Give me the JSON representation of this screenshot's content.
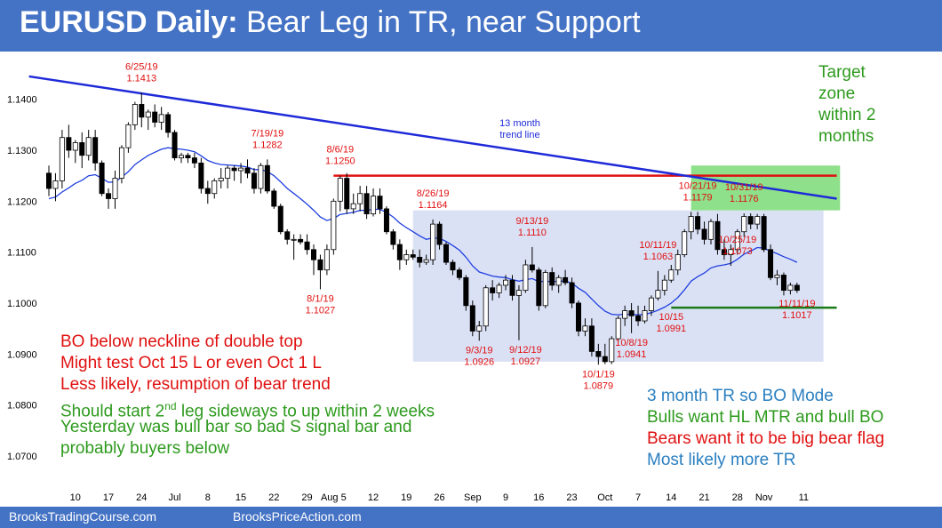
{
  "title": {
    "bold": "EURUSD Daily:",
    "rest": "Bear Leg in TR, near Support"
  },
  "footer": {
    "left": "BrooksTradingCourse.com",
    "right": "BrooksPriceAction.com"
  },
  "colors": {
    "accent": "#4472c4",
    "bull": "#ffffff",
    "bear": "#000000",
    "ema": "#1f3fe0",
    "trendline": "#1e2ad8",
    "resistance": "#e01010",
    "support": "#1a7a1a",
    "range_box": "#dbe1f5",
    "target_box": "#8ee08a",
    "red_text": "#e01010",
    "green_text": "#2e9a1e",
    "blue_text": "#2a7fc0"
  },
  "chart_data": {
    "type": "candlestick",
    "ylim": [
      1.063,
      1.1485
    ],
    "y_ticks": [
      "1.1400",
      "1.1300",
      "1.1200",
      "1.1100",
      "1.1000",
      "1.0900",
      "1.0800",
      "1.0700"
    ],
    "y_tick_values": [
      1.14,
      1.13,
      1.12,
      1.11,
      1.1,
      1.09,
      1.08,
      1.07
    ],
    "x_ticks": [
      {
        "label": "10",
        "bar": 4
      },
      {
        "label": "17",
        "bar": 9
      },
      {
        "label": "24",
        "bar": 14
      },
      {
        "label": "Jul",
        "bar": 19
      },
      {
        "label": "8",
        "bar": 24
      },
      {
        "label": "15",
        "bar": 29
      },
      {
        "label": "22",
        "bar": 34
      },
      {
        "label": "29",
        "bar": 39
      },
      {
        "label": "Aug 5",
        "bar": 43
      },
      {
        "label": "12",
        "bar": 49
      },
      {
        "label": "19",
        "bar": 54
      },
      {
        "label": "26",
        "bar": 59
      },
      {
        "label": "Sep",
        "bar": 64
      },
      {
        "label": "9",
        "bar": 69
      },
      {
        "label": "16",
        "bar": 74
      },
      {
        "label": "23",
        "bar": 79
      },
      {
        "label": "Oct",
        "bar": 84
      },
      {
        "label": "7",
        "bar": 89
      },
      {
        "label": "14",
        "bar": 94
      },
      {
        "label": "21",
        "bar": 99
      },
      {
        "label": "28",
        "bar": 104
      },
      {
        "label": "Nov",
        "bar": 108
      },
      {
        "label": "11",
        "bar": 114
      }
    ],
    "ohlc": [
      [
        1.1255,
        1.127,
        1.121,
        1.1225
      ],
      [
        1.1225,
        1.1255,
        1.12,
        1.124
      ],
      [
        1.124,
        1.134,
        1.1225,
        1.1325
      ],
      [
        1.1325,
        1.135,
        1.1285,
        1.13
      ],
      [
        1.13,
        1.132,
        1.1275,
        1.1315
      ],
      [
        1.1315,
        1.1335,
        1.1265,
        1.129
      ],
      [
        1.129,
        1.134,
        1.128,
        1.1325
      ],
      [
        1.1325,
        1.134,
        1.126,
        1.1275
      ],
      [
        1.1275,
        1.128,
        1.121,
        1.1215
      ],
      [
        1.1215,
        1.1225,
        1.1185,
        1.1205
      ],
      [
        1.1205,
        1.126,
        1.1185,
        1.1245
      ],
      [
        1.1245,
        1.131,
        1.1235,
        1.1305
      ],
      [
        1.1305,
        1.1355,
        1.1295,
        1.135
      ],
      [
        1.135,
        1.1395,
        1.134,
        1.139
      ],
      [
        1.139,
        1.1413,
        1.1345,
        1.1365
      ],
      [
        1.1365,
        1.138,
        1.134,
        1.1375
      ],
      [
        1.1375,
        1.139,
        1.1345,
        1.1355
      ],
      [
        1.1355,
        1.1385,
        1.134,
        1.137
      ],
      [
        1.137,
        1.1375,
        1.1325,
        1.1335
      ],
      [
        1.1335,
        1.134,
        1.128,
        1.1285
      ],
      [
        1.1285,
        1.1295,
        1.1275,
        1.129
      ],
      [
        1.129,
        1.1295,
        1.1275,
        1.1285
      ],
      [
        1.1285,
        1.1295,
        1.1265,
        1.1275
      ],
      [
        1.1275,
        1.1285,
        1.1215,
        1.1225
      ],
      [
        1.1225,
        1.124,
        1.1195,
        1.1215
      ],
      [
        1.1215,
        1.1245,
        1.1205,
        1.124
      ],
      [
        1.124,
        1.1265,
        1.1225,
        1.1245
      ],
      [
        1.1245,
        1.127,
        1.1225,
        1.1265
      ],
      [
        1.1265,
        1.127,
        1.124,
        1.126
      ],
      [
        1.126,
        1.1275,
        1.1235,
        1.1265
      ],
      [
        1.1265,
        1.1282,
        1.1245,
        1.1255
      ],
      [
        1.1255,
        1.1265,
        1.1215,
        1.1225
      ],
      [
        1.1225,
        1.1275,
        1.1215,
        1.127
      ],
      [
        1.127,
        1.1282,
        1.1215,
        1.122
      ],
      [
        1.122,
        1.1225,
        1.1185,
        1.119
      ],
      [
        1.119,
        1.1195,
        1.1135,
        1.114
      ],
      [
        1.114,
        1.1145,
        1.1115,
        1.1125
      ],
      [
        1.1125,
        1.1135,
        1.1085,
        1.1125
      ],
      [
        1.1125,
        1.1135,
        1.1115,
        1.112
      ],
      [
        1.112,
        1.1135,
        1.1095,
        1.1105
      ],
      [
        1.1105,
        1.1115,
        1.1055,
        1.1085
      ],
      [
        1.1085,
        1.1095,
        1.1027,
        1.1065
      ],
      [
        1.1065,
        1.1115,
        1.1055,
        1.1105
      ],
      [
        1.1105,
        1.1205,
        1.1095,
        1.12
      ],
      [
        1.12,
        1.125,
        1.118,
        1.1245
      ],
      [
        1.1245,
        1.1255,
        1.1175,
        1.1185
      ],
      [
        1.1185,
        1.1215,
        1.1175,
        1.1195
      ],
      [
        1.1195,
        1.123,
        1.118,
        1.1215
      ],
      [
        1.1215,
        1.123,
        1.1165,
        1.1175
      ],
      [
        1.1175,
        1.1225,
        1.117,
        1.121
      ],
      [
        1.121,
        1.1225,
        1.1175,
        1.1185
      ],
      [
        1.1185,
        1.119,
        1.1135,
        1.114
      ],
      [
        1.114,
        1.1145,
        1.1105,
        1.1115
      ],
      [
        1.1115,
        1.1125,
        1.1065,
        1.1085
      ],
      [
        1.1085,
        1.1105,
        1.1075,
        1.1095
      ],
      [
        1.1095,
        1.1105,
        1.1085,
        1.109
      ],
      [
        1.109,
        1.1105,
        1.107,
        1.108
      ],
      [
        1.108,
        1.1095,
        1.1075,
        1.1085
      ],
      [
        1.1085,
        1.1164,
        1.1075,
        1.1155
      ],
      [
        1.1155,
        1.116,
        1.1105,
        1.1115
      ],
      [
        1.1115,
        1.112,
        1.1075,
        1.108
      ],
      [
        1.108,
        1.1085,
        1.1055,
        1.1065
      ],
      [
        1.1065,
        1.107,
        1.1045,
        1.105
      ],
      [
        1.105,
        1.1055,
        1.0985,
        1.0995
      ],
      [
        1.0995,
        1.1005,
        1.0935,
        1.0945
      ],
      [
        1.0945,
        1.0965,
        1.0926,
        1.0955
      ],
      [
        1.0955,
        1.1035,
        1.0945,
        1.103
      ],
      [
        1.103,
        1.1045,
        1.1005,
        1.102
      ],
      [
        1.102,
        1.104,
        1.101,
        1.1035
      ],
      [
        1.1035,
        1.1055,
        1.1025,
        1.1045
      ],
      [
        1.1045,
        1.1055,
        1.1005,
        1.1015
      ],
      [
        1.1015,
        1.1035,
        1.0927,
        1.1025
      ],
      [
        1.1025,
        1.1085,
        1.102,
        1.1075
      ],
      [
        1.1075,
        1.111,
        1.106,
        1.1065
      ],
      [
        1.1065,
        1.107,
        1.0985,
        1.0995
      ],
      [
        1.0995,
        1.1065,
        1.099,
        1.106
      ],
      [
        1.106,
        1.107,
        1.1025,
        1.1035
      ],
      [
        1.1035,
        1.1055,
        1.102,
        1.105
      ],
      [
        1.105,
        1.1065,
        1.1035,
        1.104
      ],
      [
        1.104,
        1.105,
        1.099,
        1.1
      ],
      [
        1.1,
        1.1005,
        1.0935,
        1.0945
      ],
      [
        1.0945,
        1.097,
        1.0935,
        1.0955
      ],
      [
        1.0955,
        1.097,
        1.0895,
        1.0905
      ],
      [
        1.0905,
        1.092,
        1.0879,
        1.0895
      ],
      [
        1.0895,
        1.092,
        1.088,
        1.0885
      ],
      [
        1.0885,
        1.0935,
        1.088,
        1.093
      ],
      [
        1.093,
        1.0975,
        1.0925,
        1.097
      ],
      [
        1.097,
        1.0995,
        1.0955,
        1.0985
      ],
      [
        1.0985,
        1.1,
        1.0941,
        1.0975
      ],
      [
        1.0975,
        1.0995,
        1.0955,
        1.0965
      ],
      [
        1.0965,
        1.0995,
        1.096,
        1.0985
      ],
      [
        1.0985,
        1.1015,
        1.0975,
        1.101
      ],
      [
        1.101,
        1.1063,
        1.1005,
        1.1025
      ],
      [
        1.1025,
        1.1055,
        1.1015,
        1.1045
      ],
      [
        1.1045,
        1.1075,
        1.104,
        1.1065
      ],
      [
        1.1065,
        1.1105,
        1.1055,
        1.1095
      ],
      [
        1.1095,
        1.1145,
        1.109,
        1.114
      ],
      [
        1.114,
        1.1179,
        1.1125,
        1.117
      ],
      [
        1.117,
        1.1179,
        1.1135,
        1.1145
      ],
      [
        1.1145,
        1.116,
        1.1115,
        1.1125
      ],
      [
        1.1125,
        1.1165,
        1.1115,
        1.116
      ],
      [
        1.116,
        1.1175,
        1.1095,
        1.1105
      ],
      [
        1.1105,
        1.1125,
        1.1085,
        1.1095
      ],
      [
        1.1095,
        1.1115,
        1.1073,
        1.1105
      ],
      [
        1.1105,
        1.1145,
        1.1095,
        1.114
      ],
      [
        1.114,
        1.1176,
        1.113,
        1.117
      ],
      [
        1.117,
        1.1176,
        1.1145,
        1.1155
      ],
      [
        1.1155,
        1.1175,
        1.1145,
        1.117
      ],
      [
        1.117,
        1.1175,
        1.11,
        1.1105
      ],
      [
        1.1105,
        1.1115,
        1.1045,
        1.105
      ],
      [
        1.105,
        1.1065,
        1.1035,
        1.1055
      ],
      [
        1.1055,
        1.106,
        1.1015,
        1.1025
      ],
      [
        1.1025,
        1.104,
        1.1017,
        1.1035
      ],
      [
        1.1035,
        1.104,
        1.102,
        1.1025
      ]
    ],
    "ema": [
      1.1205,
      1.1208,
      1.1218,
      1.1226,
      1.1235,
      1.1241,
      1.125,
      1.1252,
      1.1245,
      1.1237,
      1.1238,
      1.1247,
      1.1258,
      1.1272,
      1.1281,
      1.129,
      1.1296,
      1.1302,
      1.1305,
      1.1303,
      1.1302,
      1.13,
      1.1297,
      1.1289,
      1.128,
      1.1275,
      1.1272,
      1.1271,
      1.127,
      1.1269,
      1.1267,
      1.1262,
      1.1262,
      1.1258,
      1.125,
      1.1238,
      1.1225,
      1.1215,
      1.1205,
      1.1194,
      1.1182,
      1.1169,
      1.1162,
      1.1166,
      1.1174,
      1.1176,
      1.1178,
      1.1182,
      1.1182,
      1.1184,
      1.1184,
      1.1178,
      1.1169,
      1.1157,
      1.1148,
      1.114,
      1.1132,
      1.1125,
      1.1128,
      1.1127,
      1.1121,
      1.1113,
      1.1104,
      1.109,
      1.1073,
      1.1061,
      1.1057,
      1.1053,
      1.1051,
      1.105,
      1.1046,
      1.1043,
      1.1046,
      1.1048,
      1.1042,
      1.1043,
      1.1042,
      1.1043,
      1.1043,
      1.1039,
      1.1029,
      1.1021,
      1.1008,
      1.0995,
      1.0984,
      1.0978,
      1.0977,
      1.0978,
      1.0978,
      1.0977,
      1.0978,
      1.0981,
      1.0986,
      1.0992,
      1.1,
      1.1011,
      1.1026,
      1.1043,
      1.1052,
      1.1059,
      1.1069,
      1.1073,
      1.1075,
      1.1078,
      1.1086,
      1.1096,
      1.1102,
      1.1109,
      1.1108,
      1.1102,
      1.1097,
      1.1091,
      1.1086,
      1.108
    ],
    "trend_line": {
      "label": "13 month\ntrend line",
      "from": [
        -3,
        1.1445
      ],
      "to": [
        119,
        1.1205
      ]
    },
    "resistance_line": {
      "from": [
        43,
        1.125
      ],
      "to": [
        119,
        1.125
      ]
    },
    "support_line": {
      "from": [
        94,
        1.0991
      ],
      "to": [
        119,
        1.0991
      ]
    },
    "trading_range_box": {
      "from": [
        55,
        1.0885
      ],
      "to": [
        117,
        1.1182
      ]
    },
    "target_zone_box": {
      "from": [
        97,
        1.1182
      ],
      "to": [
        119.5,
        1.127
      ]
    },
    "annotations": [
      {
        "lines": [
          "6/25/19",
          "1.1413"
        ],
        "bar": 14,
        "price": 1.1413,
        "color": "red"
      },
      {
        "lines": [
          "7/19/19",
          "1.1282"
        ],
        "bar": 33,
        "price": 1.1282,
        "color": "red"
      },
      {
        "lines": [
          "8/6/19",
          "1.1250"
        ],
        "bar": 44,
        "price": 1.125,
        "color": "red"
      },
      {
        "lines": [
          "8/26/19",
          "1.1164"
        ],
        "bar": 58,
        "price": 1.1164,
        "color": "red"
      },
      {
        "lines": [
          "9/13/19",
          "1.1110"
        ],
        "bar": 73,
        "price": 1.111,
        "color": "red"
      },
      {
        "lines": [
          "10/21/19",
          "1.1179"
        ],
        "bar": 98,
        "price": 1.1179,
        "color": "red"
      },
      {
        "lines": [
          "10/31/19",
          "1.1176"
        ],
        "bar": 105,
        "price": 1.1176,
        "color": "red"
      },
      {
        "lines": [
          "10/11/19",
          "1.1063"
        ],
        "bar": 92,
        "price": 1.1063,
        "color": "red"
      },
      {
        "lines": [
          "10/25/19",
          "1.1073"
        ],
        "bar": 104,
        "price": 1.1073,
        "color": "red"
      },
      {
        "lines": [
          "8/1/19",
          "1.1027"
        ],
        "bar": 41,
        "price": 1.1027,
        "color": "red"
      },
      {
        "lines": [
          "10/15",
          "1.0991"
        ],
        "bar": 94,
        "price": 1.0991,
        "color": "red"
      },
      {
        "lines": [
          "11/11/19",
          "1.1017"
        ],
        "bar": 113,
        "price": 1.1017,
        "color": "red"
      },
      {
        "lines": [
          "9/3/19",
          "1.0926"
        ],
        "bar": 65,
        "price": 1.0926,
        "color": "red"
      },
      {
        "lines": [
          "9/12/19",
          "1.0927"
        ],
        "bar": 72,
        "price": 1.0927,
        "color": "red"
      },
      {
        "lines": [
          "10/8/19",
          "1.0941"
        ],
        "bar": 88,
        "price": 1.0941,
        "color": "red"
      },
      {
        "lines": [
          "10/1/19",
          "1.0879"
        ],
        "bar": 83,
        "price": 1.0879,
        "color": "red"
      }
    ]
  },
  "target_zone_text": [
    "Target",
    "zone",
    "within 2",
    "months"
  ],
  "notes_left": [
    {
      "text": "BO below neckline of double top",
      "color": "red"
    },
    {
      "text": "Might test Oct 15 L or even Oct 1 L",
      "color": "red"
    },
    {
      "text": "Less likely, resumption of bear trend",
      "color": "red"
    },
    {
      "text": "Should start 2",
      "sup": "nd",
      "after": " leg sideways to up within 2 weeks",
      "color": "green"
    },
    {
      "text": "Yesterday was bull bar so bad S signal bar and",
      "color": "green"
    },
    {
      "text": "probably buyers below",
      "color": "green"
    }
  ],
  "notes_right": [
    {
      "text": "3 month TR so BO Mode",
      "color": "blue"
    },
    {
      "text": "Bulls want HL MTR and bull BO",
      "color": "green"
    },
    {
      "text": "Bears want it to be big bear flag",
      "color": "red"
    },
    {
      "text": "Most likely more TR",
      "color": "blue"
    }
  ]
}
